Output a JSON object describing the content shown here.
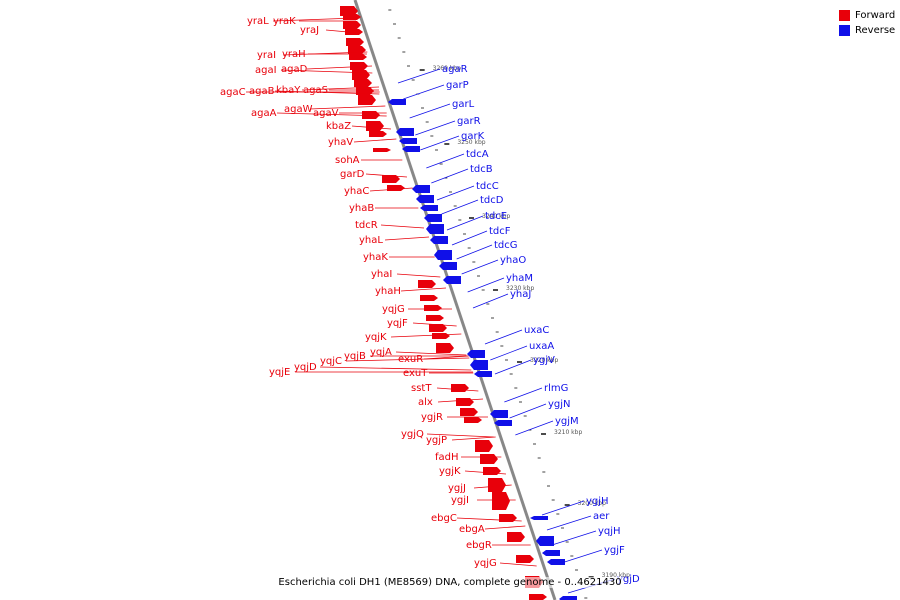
{
  "caption": "Escherichia coli DH1 (ME8569) DNA, complete genome - 0..4621430",
  "legend": [
    {
      "label": "Forward",
      "color": "#e8000a"
    },
    {
      "label": "Reverse",
      "color": "#1010e8"
    }
  ],
  "colors": {
    "forward": "#e8000a",
    "reverse": "#1010e8",
    "axis": "#888888",
    "scale_text": "#555555"
  },
  "scale_ticks": [
    "3260 kbp",
    "3250 kbp",
    "3240 kbp",
    "3230 kbp",
    "3220 kbp",
    "3210 kbp",
    "3200 kbp",
    "3190 kbp"
  ],
  "forward_genes": [
    "yraL",
    "yraK",
    "yraJ",
    "yraI",
    "yraH",
    "agaI",
    "agaD",
    "agaC",
    "agaB",
    "kbaY",
    "agaS",
    "agaA",
    "agaW",
    "agaV",
    "kbaZ",
    "yhaV",
    "sohA",
    "garD",
    "yhaC",
    "yhaB",
    "tdcR",
    "yhaL",
    "yhaK",
    "yhaI",
    "yhaH",
    "yqjG",
    "yqjF",
    "yqjK",
    "yqjE",
    "yqjD",
    "yqjC",
    "yqjB",
    "yqjA",
    "exuR",
    "exuT",
    "sstT",
    "alx",
    "ygjR",
    "ygjQ",
    "ygjP",
    "fadH",
    "ygjK",
    "ygjJ",
    "ygjI",
    "ebgC",
    "ebgA",
    "ebgR",
    "yqjG"
  ],
  "reverse_genes": [
    "agaR",
    "garP",
    "garL",
    "garR",
    "garK",
    "tdcA",
    "tdcB",
    "tdcC",
    "tdcD",
    "tdcE",
    "tdcF",
    "tdcG",
    "yhaO",
    "yhaM",
    "yhaJ",
    "uxaC",
    "uxaA",
    "ygjV",
    "rlmG",
    "ygjN",
    "ygjM",
    "ygjH",
    "aer",
    "yqjH",
    "ygjF",
    "ygjD"
  ]
}
